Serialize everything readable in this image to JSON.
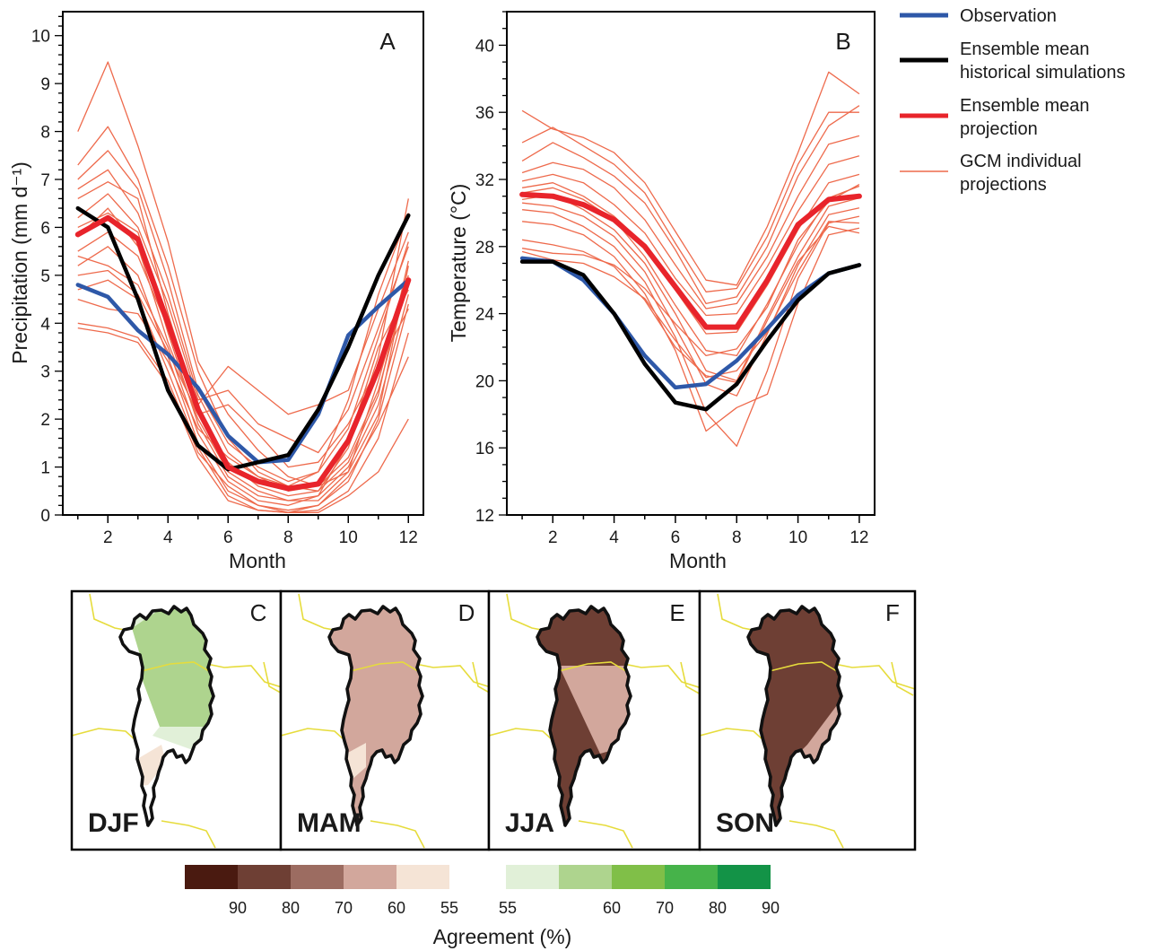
{
  "chart_data": [
    {
      "type": "line",
      "panel": "A",
      "xlabel": "Month",
      "ylabel": "Precipitation (mm d⁻¹)",
      "xlim": [
        0.5,
        12.5
      ],
      "ylim": [
        0,
        10.5
      ],
      "xticks": [
        2,
        4,
        6,
        8,
        10,
        12
      ],
      "yticks": [
        0,
        1,
        2,
        3,
        4,
        5,
        6,
        7,
        8,
        9,
        10
      ],
      "x": [
        1,
        2,
        3,
        4,
        5,
        6,
        7,
        8,
        9,
        10,
        11,
        12
      ],
      "series": [
        {
          "name": "Observation",
          "role": "observation",
          "color": "#2e58a8",
          "values": [
            4.8,
            4.55,
            3.85,
            3.35,
            2.65,
            1.65,
            1.1,
            1.15,
            2.1,
            3.75,
            4.35,
            4.9
          ]
        },
        {
          "name": "Ensemble mean historical simulations",
          "role": "historical",
          "color": "#000000",
          "values": [
            6.4,
            6.0,
            4.5,
            2.6,
            1.45,
            0.95,
            1.1,
            1.25,
            2.2,
            3.5,
            5.0,
            6.25
          ]
        },
        {
          "name": "Ensemble mean projection",
          "role": "projection",
          "color": "#e8242b",
          "values": [
            5.85,
            6.2,
            5.75,
            4.0,
            2.2,
            1.0,
            0.7,
            0.55,
            0.65,
            1.55,
            3.05,
            4.9
          ]
        }
      ],
      "individual_projections": [
        [
          8.0,
          9.45,
          7.7,
          5.7,
          3.2,
          2.1,
          1.35,
          0.8,
          0.6,
          0.9,
          2.1,
          5.2
        ],
        [
          7.3,
          8.1,
          7.0,
          5.2,
          3.0,
          1.6,
          0.9,
          0.6,
          0.5,
          1.4,
          3.3,
          6.6
        ],
        [
          7.0,
          7.6,
          6.8,
          4.9,
          2.6,
          1.5,
          1.0,
          0.7,
          0.9,
          1.8,
          3.7,
          5.7
        ],
        [
          6.8,
          7.2,
          6.3,
          4.6,
          2.5,
          1.3,
          0.8,
          0.5,
          0.6,
          1.2,
          2.6,
          4.9
        ],
        [
          6.6,
          6.95,
          6.6,
          4.2,
          2.2,
          1.1,
          0.6,
          0.4,
          0.5,
          1.1,
          2.5,
          5.3
        ],
        [
          6.2,
          6.7,
          6.0,
          4.4,
          2.4,
          2.6,
          1.9,
          1.6,
          1.3,
          2.2,
          3.9,
          5.6
        ],
        [
          6.0,
          6.3,
          5.9,
          3.8,
          1.9,
          0.8,
          0.4,
          0.3,
          0.4,
          1.0,
          2.3,
          4.6
        ],
        [
          5.8,
          6.4,
          5.6,
          3.6,
          2.0,
          0.9,
          0.5,
          0.3,
          0.3,
          0.9,
          2.8,
          5.0
        ],
        [
          5.5,
          5.9,
          5.4,
          3.9,
          2.3,
          3.1,
          2.6,
          2.1,
          2.3,
          2.6,
          4.3,
          5.9
        ],
        [
          5.4,
          5.2,
          4.8,
          3.5,
          1.7,
          0.7,
          0.3,
          0.2,
          0.4,
          1.5,
          3.5,
          4.7
        ],
        [
          5.2,
          5.6,
          5.0,
          3.3,
          1.5,
          0.5,
          0.2,
          0.1,
          0.2,
          0.7,
          2.0,
          4.4
        ],
        [
          5.0,
          5.1,
          4.6,
          3.4,
          2.1,
          2.3,
          1.7,
          1.0,
          1.1,
          1.9,
          3.1,
          4.3
        ],
        [
          4.7,
          4.9,
          4.5,
          3.0,
          1.4,
          0.4,
          0.1,
          0.05,
          0.1,
          0.5,
          1.6,
          3.8
        ],
        [
          4.5,
          4.3,
          4.2,
          3.2,
          1.8,
          1.2,
          0.8,
          0.6,
          0.9,
          2.4,
          4.6,
          6.3
        ],
        [
          4.0,
          3.9,
          3.7,
          2.8,
          1.3,
          0.6,
          0.2,
          0.05,
          0.2,
          0.8,
          1.9,
          3.3
        ],
        [
          3.9,
          3.8,
          3.6,
          2.7,
          1.2,
          0.3,
          0.1,
          0.05,
          0.05,
          0.4,
          0.9,
          2.0
        ]
      ]
    },
    {
      "type": "line",
      "panel": "B",
      "xlabel": "Month",
      "ylabel": "Temperature (°C)",
      "xlim": [
        0.5,
        12.5
      ],
      "ylim": [
        12,
        42
      ],
      "xticks": [
        2,
        4,
        6,
        8,
        10,
        12
      ],
      "yticks": [
        12,
        16,
        20,
        24,
        28,
        32,
        36,
        40
      ],
      "x": [
        1,
        2,
        3,
        4,
        5,
        6,
        7,
        8,
        9,
        10,
        11,
        12
      ],
      "series": [
        {
          "name": "Observation",
          "role": "observation",
          "color": "#2e58a8",
          "values": [
            27.3,
            27.1,
            26.0,
            24.0,
            21.5,
            19.6,
            19.8,
            21.2,
            23.1,
            25.1,
            26.4,
            26.9
          ]
        },
        {
          "name": "Ensemble mean historical simulations",
          "role": "historical",
          "color": "#000000",
          "values": [
            27.1,
            27.1,
            26.3,
            24.0,
            21.0,
            18.7,
            18.3,
            19.8,
            22.4,
            24.8,
            26.4,
            26.9
          ]
        },
        {
          "name": "Ensemble mean projection",
          "role": "projection",
          "color": "#e8242b",
          "values": [
            31.1,
            31.0,
            30.5,
            29.6,
            28.0,
            25.6,
            23.2,
            23.2,
            26.0,
            29.3,
            30.8,
            31.0
          ]
        }
      ],
      "individual_projections": [
        [
          36.1,
          35.0,
          34.5,
          33.6,
          31.8,
          28.9,
          26.0,
          25.7,
          29.2,
          33.6,
          38.4,
          37.1
        ],
        [
          34.2,
          35.1,
          34.0,
          32.9,
          31.2,
          28.2,
          25.3,
          25.5,
          28.6,
          32.9,
          36.0,
          36.0
        ],
        [
          33.1,
          34.2,
          33.3,
          32.2,
          30.6,
          27.8,
          24.6,
          25.0,
          28.0,
          32.2,
          35.2,
          36.4
        ],
        [
          32.4,
          33.0,
          32.6,
          31.5,
          29.6,
          26.9,
          24.3,
          24.6,
          27.4,
          31.0,
          34.1,
          34.6
        ],
        [
          31.9,
          32.3,
          31.8,
          30.5,
          28.8,
          26.1,
          23.9,
          24.0,
          26.8,
          30.1,
          32.9,
          33.4
        ],
        [
          31.5,
          31.8,
          31.0,
          29.8,
          28.1,
          25.4,
          22.8,
          22.9,
          25.7,
          29.0,
          31.8,
          32.3
        ],
        [
          31.2,
          31.5,
          30.8,
          29.6,
          27.4,
          24.5,
          21.8,
          21.5,
          24.6,
          28.1,
          30.9,
          31.6
        ],
        [
          30.8,
          31.1,
          30.2,
          29.0,
          27.0,
          24.0,
          20.6,
          20.0,
          23.8,
          27.4,
          30.4,
          30.9
        ],
        [
          30.6,
          30.4,
          29.8,
          28.6,
          26.5,
          23.2,
          19.8,
          19.1,
          22.8,
          26.9,
          29.9,
          30.3
        ],
        [
          30.2,
          30.0,
          29.2,
          28.0,
          25.9,
          22.6,
          18.1,
          16.1,
          20.6,
          26.1,
          29.4,
          29.8
        ],
        [
          29.5,
          29.3,
          28.7,
          27.4,
          25.2,
          21.8,
          17.0,
          18.4,
          19.2,
          24.6,
          28.7,
          29.1
        ],
        [
          28.4,
          28.1,
          27.7,
          26.8,
          24.8,
          22.0,
          20.3,
          19.9,
          23.6,
          27.1,
          29.2,
          28.8
        ],
        [
          27.9,
          27.6,
          27.5,
          26.9,
          25.5,
          23.4,
          21.5,
          21.9,
          24.4,
          28.4,
          30.7,
          31.7
        ],
        [
          27.7,
          27.2,
          27.0,
          26.2,
          24.9,
          22.4,
          20.2,
          20.6,
          22.9,
          26.5,
          29.5,
          29.4
        ]
      ]
    }
  ],
  "legend": {
    "items": [
      {
        "line1": "Observation",
        "line2": "",
        "color": "#2e58a8",
        "weight": "thick"
      },
      {
        "line1": "Ensemble mean",
        "line2": "historical simulations",
        "color": "#000000",
        "weight": "thick"
      },
      {
        "line1": "Ensemble mean",
        "line2": "projection",
        "color": "#e8242b",
        "weight": "thick"
      },
      {
        "line1": "GCM individual",
        "line2": "projections",
        "color": "#ee6a4c",
        "weight": "thin"
      }
    ]
  },
  "maps": [
    {
      "letter": "C",
      "season": "DJF"
    },
    {
      "letter": "D",
      "season": "MAM"
    },
    {
      "letter": "E",
      "season": "JJA"
    },
    {
      "letter": "F",
      "season": "SON"
    }
  ],
  "colorbar": {
    "title": "Agreement (%)",
    "brown_colors": [
      "#4a1a10",
      "#6e3f34",
      "#9c6c61",
      "#d2a79c",
      "#f5e4d6"
    ],
    "green_colors": [
      "#e1f0d8",
      "#aed48e",
      "#80bf48",
      "#46b34a",
      "#139347"
    ],
    "brown_labels": [
      "90",
      "80",
      "70",
      "60",
      "55"
    ],
    "green_labels": [
      "55",
      "60",
      "70",
      "80",
      "90"
    ]
  },
  "colors": {
    "gcm_line": "#ee6a4c",
    "border_yellow": "#e6dc3c",
    "region_outline": "#111111"
  }
}
